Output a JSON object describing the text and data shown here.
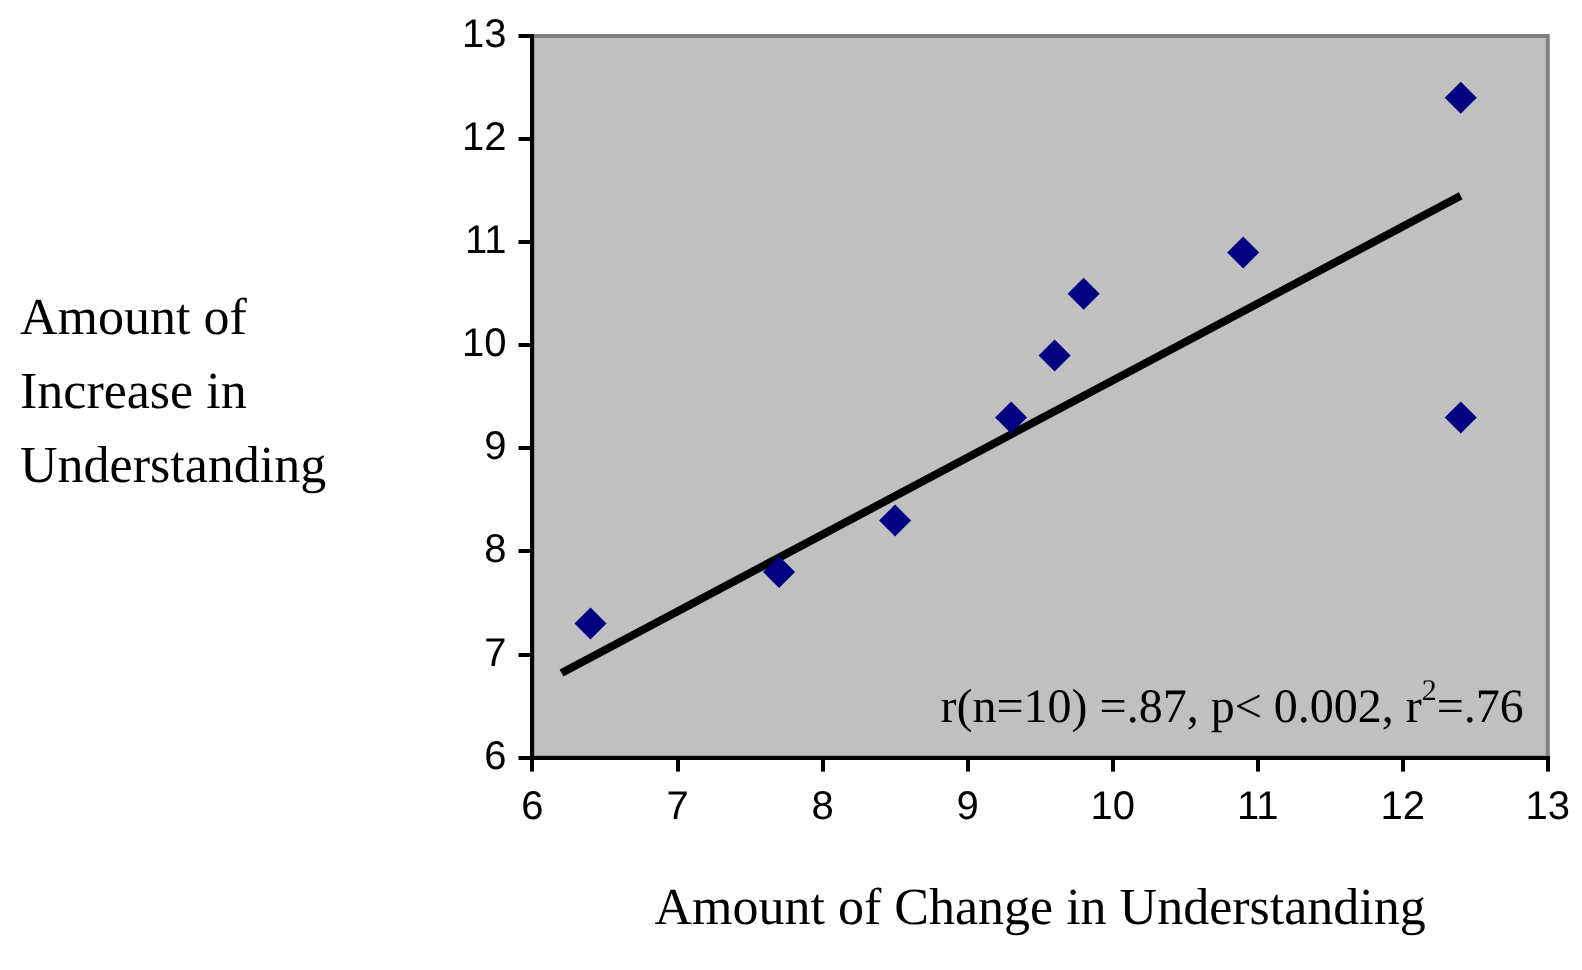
{
  "chart_data": {
    "type": "scatter",
    "xlabel": "Amount of Change in Understanding",
    "ylabel": "Amount of Increase in Understanding",
    "x": [
      6.4,
      7.7,
      8.5,
      9.3,
      9.6,
      9.8,
      10.9,
      12.4,
      12.4
    ],
    "series": [
      {
        "color": "#000080",
        "values": [
          7.3,
          7.8,
          8.3,
          9.3,
          9.9,
          10.5,
          10.9,
          12.4,
          9.3
        ],
        "marker": "diamond"
      },
      {
        "type": "line",
        "color": "#000000",
        "x": [
          6.2,
          12.4
        ],
        "values": [
          6.82,
          11.45
        ],
        "marker": "none"
      }
    ],
    "xlim": [
      6,
      13
    ],
    "xticks": [
      6,
      7,
      8,
      9,
      10,
      11,
      12,
      13
    ],
    "ylim": [
      6,
      13
    ],
    "yticks": [
      6,
      7,
      8,
      9,
      10,
      11,
      12,
      13
    ],
    "grid": false,
    "legend": false,
    "annotations": [
      "r(n=10) =.87, p< 0.002, r$^{2}$=.76"
    ]
  }
}
